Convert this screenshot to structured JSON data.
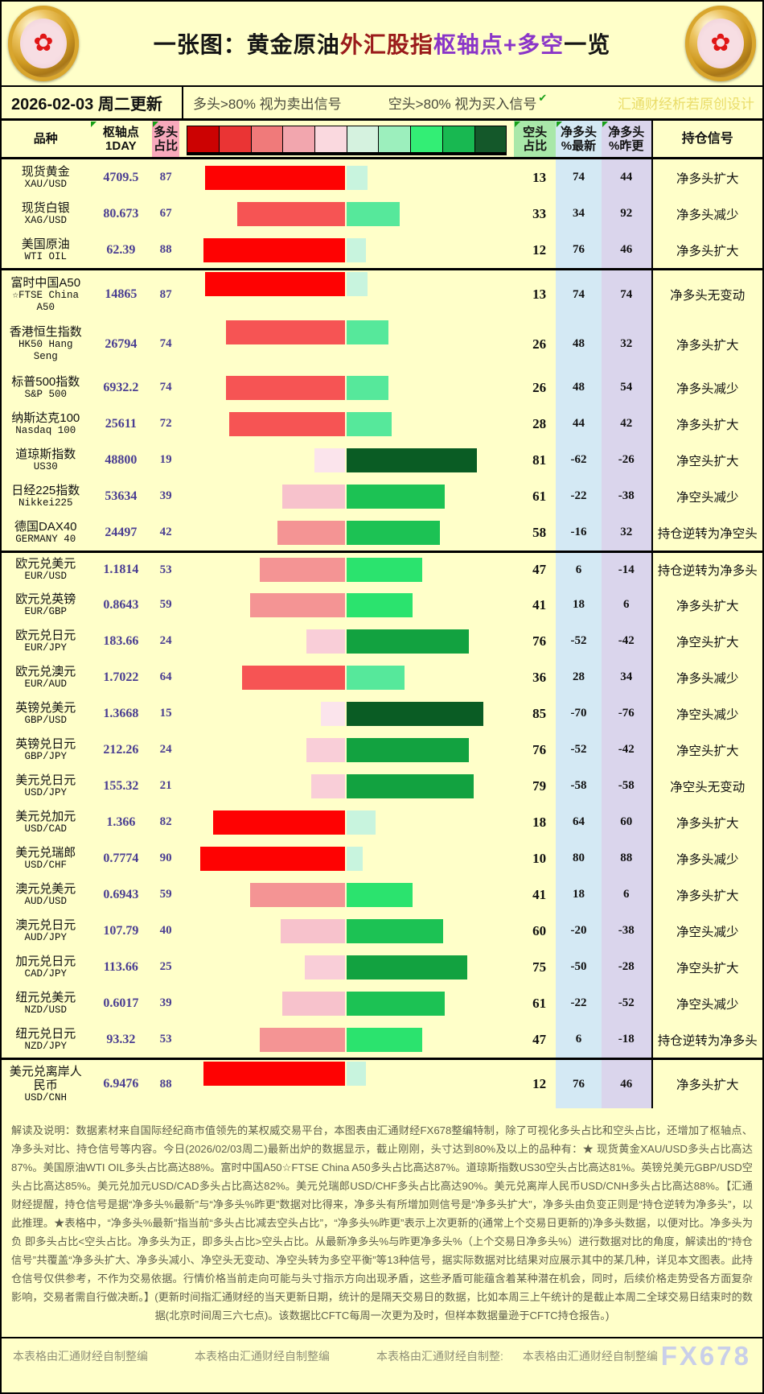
{
  "header": {
    "title_parts": [
      {
        "text": "一张图：黄金原油",
        "color": "#151515"
      },
      {
        "text": "外汇股指",
        "color": "#9a1b1b"
      },
      {
        "text": "枢轴点+多空",
        "color": "#8a35c8"
      },
      {
        "text": "一览",
        "color": "#151515"
      }
    ],
    "date_line": "2026-02-03 周二更新",
    "long_hint": "多头>80% 视为卖出信号",
    "short_hint": "空头>80% 视为买入信号",
    "brand_credit": "汇通财经析若原创设计"
  },
  "icons": {
    "check": "✔",
    "flower": "✿"
  },
  "table": {
    "col_headers": {
      "instrument": "品种",
      "pivot_l1": "枢轴点",
      "pivot_l2": "1DAY",
      "long_l1": "多头",
      "long_l2": "占比",
      "short_l1": "空头",
      "short_l2": "占比",
      "net_new_l1": "净多头",
      "net_new_l2": "%最新",
      "net_prev_l1": "净多头",
      "net_prev_l2": "%昨更",
      "signal": "持仓信号"
    },
    "legend_colors": [
      "#CC0202",
      "#EA3434",
      "#F07A7A",
      "#F2A6AE",
      "#FAD9DF",
      "#D5F2DF",
      "#9CEFBD",
      "#33EE75",
      "#18B851",
      "#14582A"
    ]
  },
  "chart_data": {
    "type": "bar",
    "orientation": "diverging-horizontal",
    "title": "一张图：黄金原油外汇股指枢轴点+多空一览",
    "units": "percent",
    "value_range": [
      0,
      100
    ],
    "series_meaning": {
      "long": "多头占比(红色, 向左)",
      "short": "空头占比(绿色, 向右)",
      "net_new": "净多头%最新",
      "net_prev": "净多头%昨更"
    },
    "rows": [
      {
        "cn": [
          "现货黄金"
        ],
        "en": [
          "XAU/USD"
        ],
        "pivot": "4709.5",
        "long": 87,
        "short": 13,
        "net_new": "74",
        "net_prev": "44",
        "signal": "净多头扩大"
      },
      {
        "cn": [
          "现货白银"
        ],
        "en": [
          "XAG/USD"
        ],
        "pivot": "80.673",
        "long": 67,
        "short": 33,
        "net_new": "34",
        "net_prev": "92",
        "signal": "净多头减少"
      },
      {
        "cn": [
          "美国原油"
        ],
        "en": [
          "WTI OIL"
        ],
        "pivot": "62.39",
        "long": 88,
        "short": 12,
        "net_new": "76",
        "net_prev": "46",
        "signal": "净多头扩大"
      },
      {
        "cn": [
          "富时中国A50"
        ],
        "en": [
          "☆FTSE China",
          "A50"
        ],
        "pivot": "14865",
        "long": 87,
        "short": 13,
        "net_new": "74",
        "net_prev": "74",
        "signal": "净多头无变动",
        "sep": true
      },
      {
        "cn": [
          "香港恒生指数"
        ],
        "en": [
          "HK50 Hang",
          "Seng"
        ],
        "pivot": "26794",
        "long": 74,
        "short": 26,
        "net_new": "48",
        "net_prev": "32",
        "signal": "净多头扩大"
      },
      {
        "cn": [
          "标普500指数"
        ],
        "en": [
          "S&P 500"
        ],
        "pivot": "6932.2",
        "long": 74,
        "short": 26,
        "net_new": "48",
        "net_prev": "54",
        "signal": "净多头减少"
      },
      {
        "cn": [
          "纳斯达克100"
        ],
        "en": [
          "Nasdaq 100"
        ],
        "pivot": "25611",
        "long": 72,
        "short": 28,
        "net_new": "44",
        "net_prev": "42",
        "signal": "净多头扩大"
      },
      {
        "cn": [
          "道琼斯指数"
        ],
        "en": [
          "US30"
        ],
        "pivot": "48800",
        "long": 19,
        "short": 81,
        "net_new": "-62",
        "net_prev": "-26",
        "signal": "净空头扩大"
      },
      {
        "cn": [
          "日经225指数"
        ],
        "en": [
          "Nikkei225"
        ],
        "pivot": "53634",
        "long": 39,
        "short": 61,
        "net_new": "-22",
        "net_prev": "-38",
        "signal": "净空头减少"
      },
      {
        "cn": [
          "德国DAX40"
        ],
        "en": [
          "GERMANY 40"
        ],
        "pivot": "24497",
        "long": 42,
        "short": 58,
        "net_new": "-16",
        "net_prev": "32",
        "signal": "持仓逆转为净空头"
      },
      {
        "cn": [
          "欧元兑美元"
        ],
        "en": [
          "EUR/USD"
        ],
        "pivot": "1.1814",
        "long": 53,
        "short": 47,
        "net_new": "6",
        "net_prev": "-14",
        "signal": "持仓逆转为净多头",
        "sep": true
      },
      {
        "cn": [
          "欧元兑英镑"
        ],
        "en": [
          "EUR/GBP"
        ],
        "pivot": "0.8643",
        "long": 59,
        "short": 41,
        "net_new": "18",
        "net_prev": "6",
        "signal": "净多头扩大"
      },
      {
        "cn": [
          "欧元兑日元"
        ],
        "en": [
          "EUR/JPY"
        ],
        "pivot": "183.66",
        "long": 24,
        "short": 76,
        "net_new": "-52",
        "net_prev": "-42",
        "signal": "净空头扩大"
      },
      {
        "cn": [
          "欧元兑澳元"
        ],
        "en": [
          "EUR/AUD"
        ],
        "pivot": "1.7022",
        "long": 64,
        "short": 36,
        "net_new": "28",
        "net_prev": "34",
        "signal": "净多头减少"
      },
      {
        "cn": [
          "英镑兑美元"
        ],
        "en": [
          "GBP/USD"
        ],
        "pivot": "1.3668",
        "long": 15,
        "short": 85,
        "net_new": "-70",
        "net_prev": "-76",
        "signal": "净空头减少"
      },
      {
        "cn": [
          "英镑兑日元"
        ],
        "en": [
          "GBP/JPY"
        ],
        "pivot": "212.26",
        "long": 24,
        "short": 76,
        "net_new": "-52",
        "net_prev": "-42",
        "signal": "净空头扩大"
      },
      {
        "cn": [
          "美元兑日元"
        ],
        "en": [
          "USD/JPY"
        ],
        "pivot": "155.32",
        "long": 21,
        "short": 79,
        "net_new": "-58",
        "net_prev": "-58",
        "signal": "净空头无变动"
      },
      {
        "cn": [
          "美元兑加元"
        ],
        "en": [
          "USD/CAD"
        ],
        "pivot": "1.366",
        "long": 82,
        "short": 18,
        "net_new": "64",
        "net_prev": "60",
        "signal": "净多头扩大"
      },
      {
        "cn": [
          "美元兑瑞郎"
        ],
        "en": [
          "USD/CHF"
        ],
        "pivot": "0.7774",
        "long": 90,
        "short": 10,
        "net_new": "80",
        "net_prev": "88",
        "signal": "净多头减少"
      },
      {
        "cn": [
          "澳元兑美元"
        ],
        "en": [
          "AUD/USD"
        ],
        "pivot": "0.6943",
        "long": 59,
        "short": 41,
        "net_new": "18",
        "net_prev": "6",
        "signal": "净多头扩大"
      },
      {
        "cn": [
          "澳元兑日元"
        ],
        "en": [
          "AUD/JPY"
        ],
        "pivot": "107.79",
        "long": 40,
        "short": 60,
        "net_new": "-20",
        "net_prev": "-38",
        "signal": "净空头减少"
      },
      {
        "cn": [
          "加元兑日元"
        ],
        "en": [
          "CAD/JPY"
        ],
        "pivot": "113.66",
        "long": 25,
        "short": 75,
        "net_new": "-50",
        "net_prev": "-28",
        "signal": "净空头扩大"
      },
      {
        "cn": [
          "纽元兑美元"
        ],
        "en": [
          "NZD/USD"
        ],
        "pivot": "0.6017",
        "long": 39,
        "short": 61,
        "net_new": "-22",
        "net_prev": "-52",
        "signal": "净空头减少"
      },
      {
        "cn": [
          "纽元兑日元"
        ],
        "en": [
          "NZD/JPY"
        ],
        "pivot": "93.32",
        "long": 53,
        "short": 47,
        "net_new": "6",
        "net_prev": "-18",
        "signal": "持仓逆转为净多头"
      },
      {
        "cn": [
          "美元兑离岸人",
          "民币"
        ],
        "en": [
          "USD/CNH"
        ],
        "pivot": "6.9476",
        "long": 88,
        "short": 12,
        "net_new": "76",
        "net_prev": "46",
        "signal": "净多头扩大",
        "sep": true
      }
    ]
  },
  "notes": {
    "text": "解读及说明：数据素材来自国际经纪商市值领先的某权威交易平台，本图表由汇通财经FX678整编特制，除了可视化多头占比和空头占比，还增加了枢轴点、净多头对比、持仓信号等内容。今日(2026/02/03周二)最新出炉的数据显示，截止刚刚，头寸达到80%及以上的品种有：★ 现货黄金XAU/USD多头占比高达87%。美国原油WTI OIL多头占比高达88%。富时中国A50☆FTSE China A50多头占比高达87%。道琼斯指数US30空头占比高达81%。英镑兑美元GBP/USD空头占比高达85%。美元兑加元USD/CAD多头占比高达82%。美元兑瑞郎USD/CHF多头占比高达90%。美元兑离岸人民币USD/CNH多头占比高达88%。【汇通财经提醒，持仓信号是据“净多头%最新”与“净多头%昨更”数据对比得来，净多头有所增加则信号是“净多头扩大”，净多头由负变正则是“持仓逆转为净多头”，以此推理。★表格中，“净多头%最新”指当前“多头占比减去空头占比”，“净多头%昨更”表示上次更新的(通常上个交易日更新的)净多头数据，以便对比。净多头为负 即多头占比<空头占比。净多头为正，即多头占比>空头占比。从最新净多头%与昨更净多头%（上个交易日净多头%）进行数据对比的角度，解读出的“持仓信号”共覆盖“净多头扩大、净多头减小、净空头无变动、净空头转为多空平衡”等13种信号，据实际数据对比结果对应展示其中的某几种，详见本文图表。此持仓信号仅供参考，不作为交易依据。行情价格当前走向可能与头寸指示方向出现矛盾，这些矛盾可能蕴含着某种潜在机会，同时，后续价格走势受各方面复杂影响，交易者需自行做决断。】(更新时间指汇通财经的当天更新日期，统计的是隔天交易日的数据，比如本周三上午统计的是截止本周二全球交易日结束时的数据(北京时间周三六七点)。该数据比CFTC每周一次更为及时，但样本数据量逊于CFTC持仓报告。)"
  },
  "footer": {
    "credits": [
      "本表格由汇通财经自制整编",
      "本表格由汇通财经自制整编",
      "本表格由汇通财经自制整:",
      "本表格由汇通财经自制整编"
    ],
    "watermark": "FX678"
  }
}
